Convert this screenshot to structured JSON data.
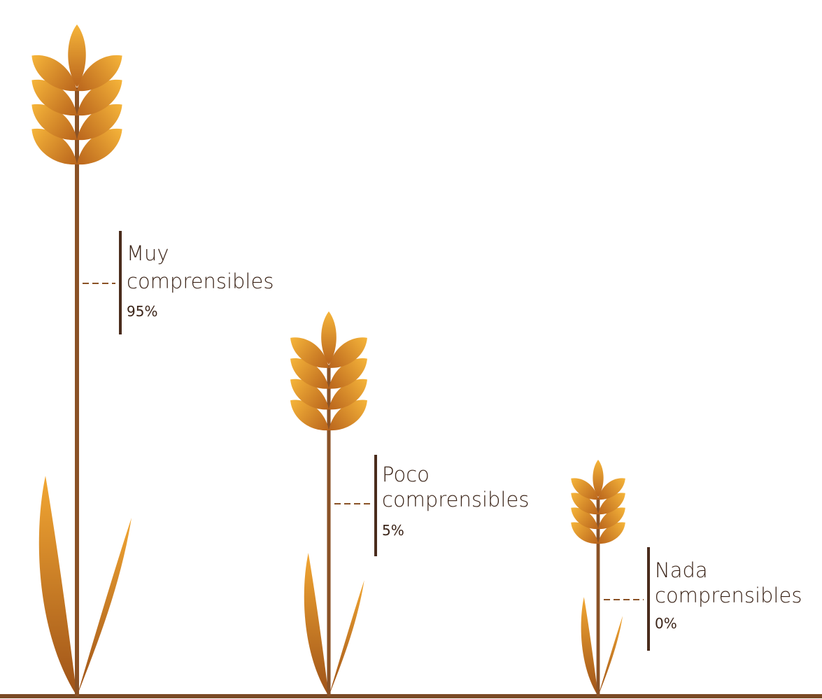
{
  "items": [
    {
      "name_lines": [
        "Muy",
        "comprensibles"
      ],
      "value": "95%"
    },
    {
      "name_lines": [
        "Poco",
        "comprensibles"
      ],
      "value": "5%"
    },
    {
      "name_lines": [
        "Nada",
        "comprensibles"
      ],
      "value": "0%"
    }
  ]
}
